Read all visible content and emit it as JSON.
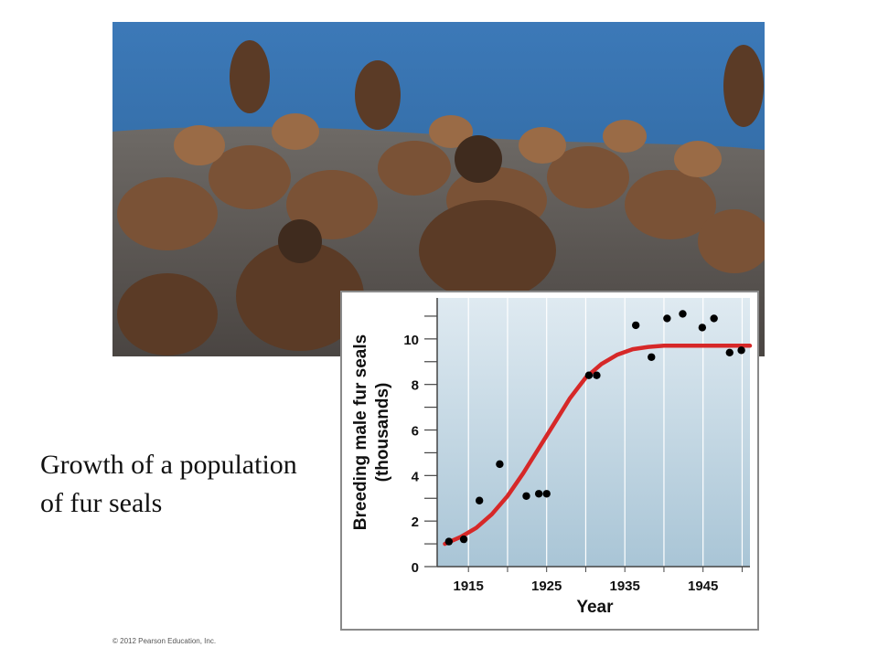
{
  "caption": {
    "text": "Growth of a population of fur seals"
  },
  "copyright": "© 2012 Pearson Education, Inc.",
  "photo": {
    "icon": "seal-colony-photo"
  },
  "chart_data": {
    "type": "scatter",
    "title": "",
    "xlabel": "Year",
    "ylabel": "Breeding male fur seals (thousands)",
    "xlim": [
      1911,
      1951
    ],
    "ylim": [
      0,
      11.8
    ],
    "xticks": [
      1915,
      1925,
      1935,
      1945
    ],
    "yticks": [
      0,
      2,
      4,
      6,
      8,
      10
    ],
    "grid": true,
    "series": [
      {
        "type": "scatter",
        "color": "#000000",
        "points": [
          {
            "x": 1912.5,
            "y": 1.1
          },
          {
            "x": 1914.4,
            "y": 1.2
          },
          {
            "x": 1916.4,
            "y": 2.9
          },
          {
            "x": 1919.0,
            "y": 4.5
          },
          {
            "x": 1922.4,
            "y": 3.1
          },
          {
            "x": 1924.0,
            "y": 3.2
          },
          {
            "x": 1925.0,
            "y": 3.2
          },
          {
            "x": 1930.4,
            "y": 8.4
          },
          {
            "x": 1931.4,
            "y": 8.4
          },
          {
            "x": 1936.4,
            "y": 10.6
          },
          {
            "x": 1938.4,
            "y": 9.2
          },
          {
            "x": 1940.4,
            "y": 10.9
          },
          {
            "x": 1942.4,
            "y": 11.1
          },
          {
            "x": 1944.9,
            "y": 10.5
          },
          {
            "x": 1946.4,
            "y": 10.9
          },
          {
            "x": 1948.4,
            "y": 9.4
          },
          {
            "x": 1949.9,
            "y": 9.5
          }
        ]
      },
      {
        "type": "line",
        "color": "#d62828",
        "points": [
          {
            "x": 1912,
            "y": 1.0
          },
          {
            "x": 1914,
            "y": 1.3
          },
          {
            "x": 1916,
            "y": 1.7
          },
          {
            "x": 1918,
            "y": 2.3
          },
          {
            "x": 1920,
            "y": 3.1
          },
          {
            "x": 1922,
            "y": 4.1
          },
          {
            "x": 1924,
            "y": 5.2
          },
          {
            "x": 1926,
            "y": 6.3
          },
          {
            "x": 1928,
            "y": 7.4
          },
          {
            "x": 1930,
            "y": 8.3
          },
          {
            "x": 1932,
            "y": 8.9
          },
          {
            "x": 1934,
            "y": 9.3
          },
          {
            "x": 1936,
            "y": 9.55
          },
          {
            "x": 1938,
            "y": 9.65
          },
          {
            "x": 1940,
            "y": 9.7
          },
          {
            "x": 1944,
            "y": 9.7
          },
          {
            "x": 1948,
            "y": 9.7
          },
          {
            "x": 1951,
            "y": 9.7
          }
        ]
      }
    ]
  }
}
